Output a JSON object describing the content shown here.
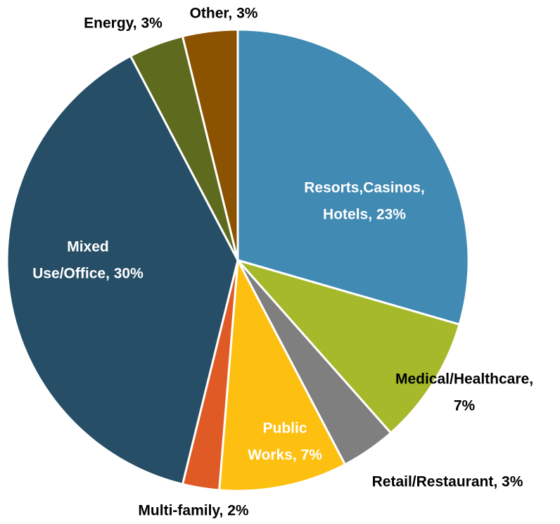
{
  "chart_data": {
    "type": "pie",
    "labels": [
      [
        "Resorts,Casinos,",
        "Hotels, 23%"
      ],
      [
        "Medical/Healthcare,",
        "7%"
      ],
      [
        "Retail/Restaurant, 3%"
      ],
      [
        "Public",
        "Works, 7%"
      ],
      [
        "Multi-family, 2%"
      ],
      [
        "Mixed",
        "Use/Office, 30%"
      ],
      [
        "Energy, 3%"
      ],
      [
        "Other, 3%"
      ]
    ],
    "values": [
      23,
      7,
      3,
      7,
      2,
      30,
      3,
      3
    ],
    "colors": [
      "#418ab3",
      "#a5b92a",
      "#7f7f7f",
      "#fdc010",
      "#e05a26",
      "#264e66",
      "#5e6a1e",
      "#8b5200"
    ]
  }
}
